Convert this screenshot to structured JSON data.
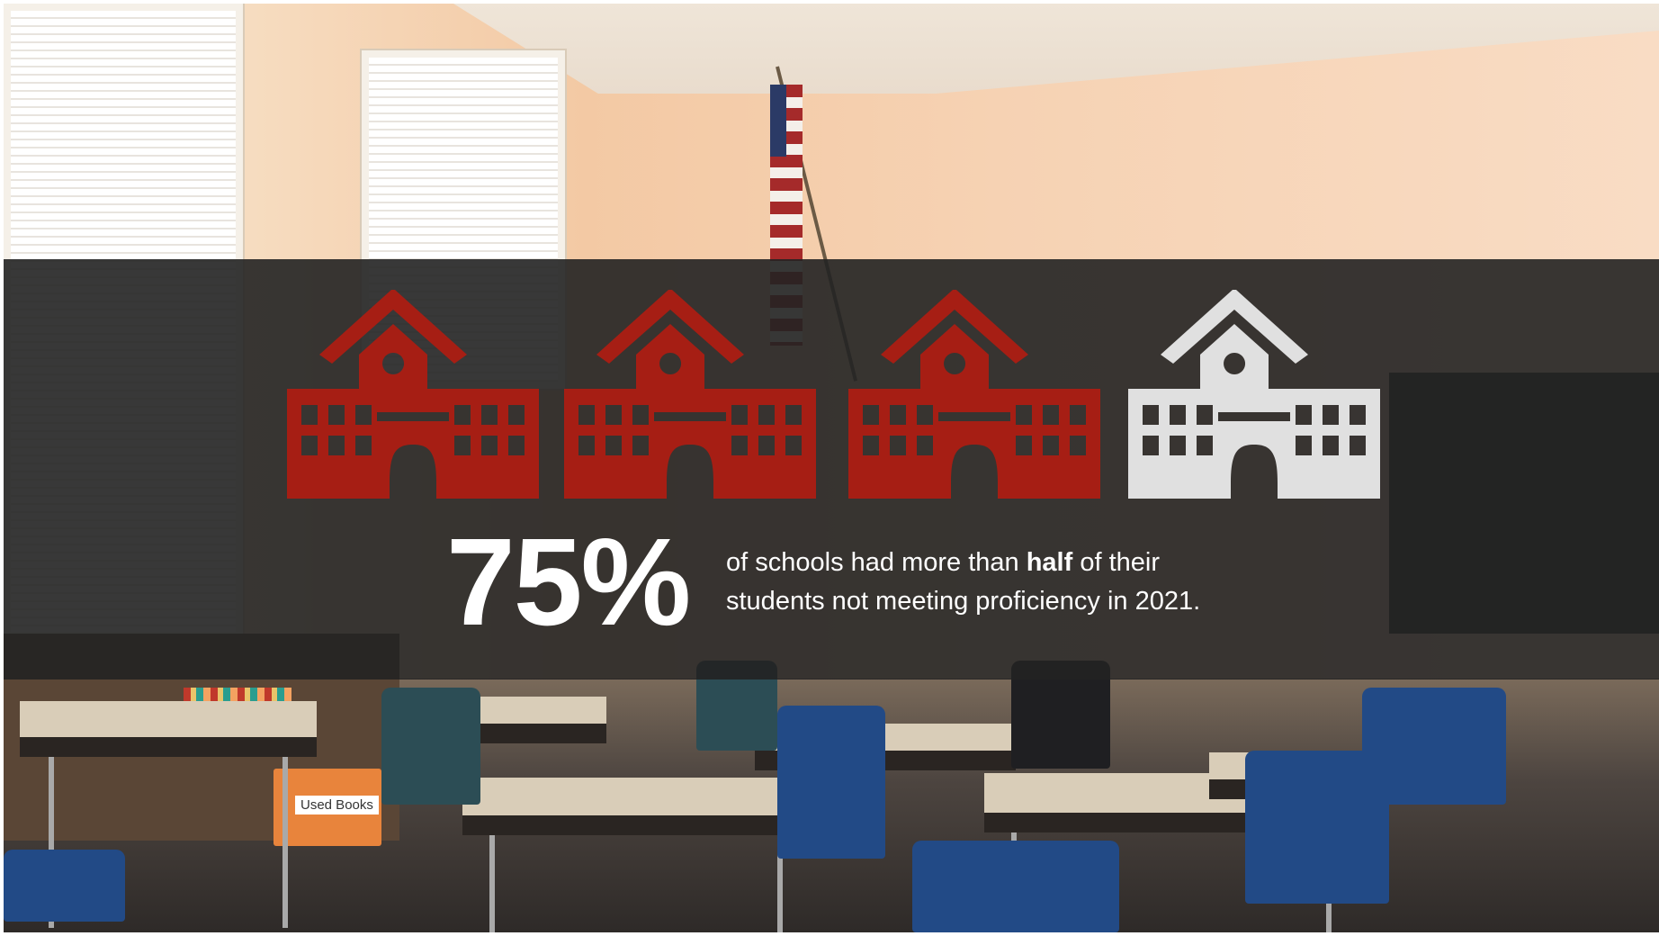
{
  "stat": {
    "number": "75%",
    "line1_before": "of schools had more than ",
    "line1_bold": "half",
    "line1_after": " of their",
    "line2": "students not meeting proficiency in 2021."
  },
  "icons": [
    {
      "name": "school-icon",
      "color": "#a61e14"
    },
    {
      "name": "school-icon",
      "color": "#a61e14"
    },
    {
      "name": "school-icon",
      "color": "#a61e14"
    },
    {
      "name": "school-icon",
      "color": "#e0e0e0"
    }
  ],
  "colors": {
    "highlight": "#a61e14",
    "neutral": "#e0e0e0",
    "band": "#222222",
    "text": "#ffffff"
  },
  "background": {
    "scene": "classroom photo",
    "signs": [
      "Used Books"
    ]
  }
}
